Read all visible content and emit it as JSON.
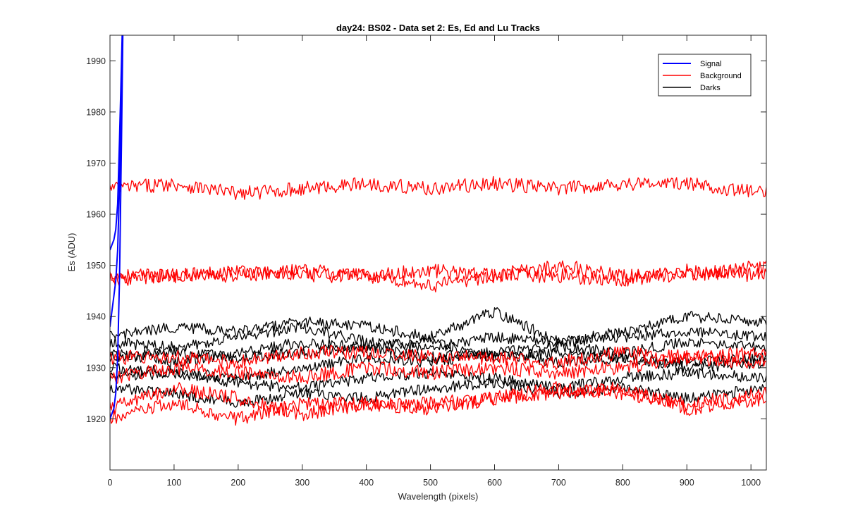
{
  "chart_data": {
    "type": "line",
    "title": "day24: BS02 - Data set 2: Es, Ed and Lu Tracks",
    "xlabel": "Wavelength (pixels)",
    "ylabel": "Es (ADU)",
    "xlim": [
      0,
      1024
    ],
    "ylim": [
      1910,
      1995
    ],
    "xticks": [
      0,
      100,
      200,
      300,
      400,
      500,
      600,
      700,
      800,
      900,
      1000
    ],
    "yticks": [
      1920,
      1930,
      1940,
      1950,
      1960,
      1970,
      1980,
      1990
    ],
    "grid": false,
    "legend_position": "top-right",
    "legend": [
      {
        "label": "Signal",
        "color": "#0000ff"
      },
      {
        "label": "Background",
        "color": "#ff0000"
      },
      {
        "label": "Darks",
        "color": "#000000"
      }
    ],
    "series": [
      {
        "group": "Signal",
        "color": "#0000ff",
        "x": [
          0,
          3,
          6,
          9,
          12,
          15,
          18,
          21
        ],
        "y": [
          1953,
          1954,
          1955,
          1957,
          1962,
          1975,
          1990,
          2005
        ]
      },
      {
        "group": "Signal",
        "color": "#0000ff",
        "x": [
          0,
          3,
          6,
          9,
          12,
          15,
          18,
          21
        ],
        "y": [
          1938,
          1941,
          1944,
          1947,
          1953,
          1966,
          1985,
          2005
        ]
      },
      {
        "group": "Signal",
        "color": "#0000ff",
        "x": [
          0,
          3,
          6,
          9,
          12,
          15,
          18,
          21
        ],
        "y": [
          1920,
          1921,
          1922,
          1925,
          1932,
          1948,
          1975,
          2005
        ]
      },
      {
        "group": "Background",
        "color": "#ff0000",
        "x": [
          0,
          100,
          200,
          300,
          400,
          500,
          600,
          700,
          800,
          900,
          1024
        ],
        "y": [
          1965,
          1966,
          1964,
          1965,
          1966,
          1965,
          1966,
          1965,
          1966,
          1966,
          1964
        ]
      },
      {
        "group": "Background",
        "color": "#ff0000",
        "x": [
          0,
          100,
          200,
          300,
          400,
          500,
          600,
          700,
          800,
          900,
          1024
        ],
        "y": [
          1948,
          1948,
          1949,
          1948,
          1948,
          1949,
          1948,
          1950,
          1948,
          1948,
          1950
        ]
      },
      {
        "group": "Background",
        "color": "#ff0000",
        "x": [
          0,
          100,
          200,
          300,
          400,
          500,
          600,
          700,
          800,
          900,
          1024
        ],
        "y": [
          1947,
          1948,
          1948,
          1949,
          1948,
          1946,
          1948,
          1948,
          1947,
          1949,
          1948
        ]
      },
      {
        "group": "Background",
        "color": "#ff0000",
        "x": [
          0,
          100,
          200,
          300,
          400,
          500,
          600,
          700,
          800,
          900,
          1024
        ],
        "y": [
          1932,
          1932,
          1931,
          1933,
          1933,
          1932,
          1932,
          1931,
          1933,
          1932,
          1933
        ]
      },
      {
        "group": "Background",
        "color": "#ff0000",
        "x": [
          0,
          100,
          200,
          300,
          400,
          500,
          600,
          700,
          800,
          900,
          1024
        ],
        "y": [
          1928,
          1930,
          1929,
          1928,
          1930,
          1929,
          1930,
          1929,
          1930,
          1932,
          1931
        ]
      },
      {
        "group": "Background",
        "color": "#ff0000",
        "x": [
          0,
          100,
          200,
          300,
          400,
          500,
          600,
          700,
          800,
          900,
          1024
        ],
        "y": [
          1922,
          1926,
          1924,
          1921,
          1923,
          1923,
          1924,
          1926,
          1925,
          1923,
          1925
        ]
      },
      {
        "group": "Background",
        "color": "#ff0000",
        "x": [
          0,
          100,
          200,
          300,
          400,
          500,
          600,
          700,
          800,
          900,
          1024
        ],
        "y": [
          1920,
          1923,
          1920,
          1923,
          1923,
          1922,
          1924,
          1925,
          1926,
          1922,
          1924
        ]
      },
      {
        "group": "Darks",
        "color": "#000000",
        "x": [
          0,
          100,
          200,
          300,
          400,
          500,
          600,
          700,
          800,
          900,
          1024
        ],
        "y": [
          1936,
          1938,
          1937,
          1939,
          1938,
          1936,
          1941,
          1935,
          1937,
          1940,
          1939
        ]
      },
      {
        "group": "Darks",
        "color": "#000000",
        "x": [
          0,
          100,
          200,
          300,
          400,
          500,
          600,
          700,
          800,
          900,
          1024
        ],
        "y": [
          1935,
          1934,
          1936,
          1938,
          1935,
          1934,
          1936,
          1935,
          1936,
          1937,
          1936
        ]
      },
      {
        "group": "Darks",
        "color": "#000000",
        "x": [
          0,
          100,
          200,
          300,
          400,
          500,
          600,
          700,
          800,
          900,
          1024
        ],
        "y": [
          1933,
          1931,
          1933,
          1935,
          1934,
          1932,
          1933,
          1934,
          1933,
          1935,
          1934
        ]
      },
      {
        "group": "Darks",
        "color": "#000000",
        "x": [
          0,
          100,
          200,
          300,
          400,
          500,
          600,
          700,
          800,
          900,
          1024
        ],
        "y": [
          1932,
          1933,
          1932,
          1933,
          1934,
          1935,
          1932,
          1933,
          1932,
          1931,
          1932
        ]
      },
      {
        "group": "Darks",
        "color": "#000000",
        "x": [
          0,
          100,
          200,
          300,
          400,
          500,
          600,
          700,
          800,
          900,
          1024
        ],
        "y": [
          1930,
          1929,
          1928,
          1930,
          1932,
          1931,
          1933,
          1931,
          1932,
          1930,
          1931
        ]
      },
      {
        "group": "Darks",
        "color": "#000000",
        "x": [
          0,
          100,
          200,
          300,
          400,
          500,
          600,
          700,
          800,
          900,
          1024
        ],
        "y": [
          1928,
          1929,
          1927,
          1926,
          1928,
          1929,
          1928,
          1926,
          1928,
          1929,
          1928
        ]
      },
      {
        "group": "Darks",
        "color": "#000000",
        "x": [
          0,
          100,
          200,
          300,
          400,
          500,
          600,
          700,
          800,
          900,
          1024
        ],
        "y": [
          1926,
          1925,
          1923,
          1925,
          1924,
          1926,
          1927,
          1925,
          1926,
          1924,
          1926
        ]
      }
    ]
  }
}
